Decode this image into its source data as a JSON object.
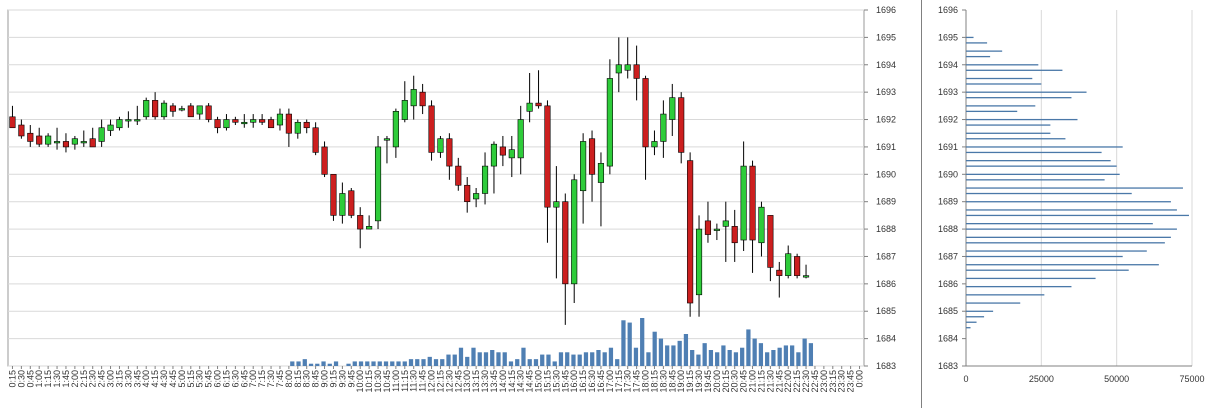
{
  "colors": {
    "up": "#2ecc3a",
    "down": "#cc1f1f",
    "volume": "#4f7fb3",
    "profile": "#4a78a8",
    "grid": "#d9d9d9",
    "wick": "#000000"
  },
  "chart_data": [
    {
      "type": "candlestick",
      "price_axis": {
        "min": 1683,
        "max": 1696,
        "ticks": [
          "1696",
          "1695",
          "1694",
          "1693",
          "1692",
          "1691",
          "1690",
          "1689",
          "1688",
          "1687",
          "1686",
          "1685",
          "1684",
          "1683"
        ]
      },
      "volume_panel": {
        "present": true,
        "bars": [
          0,
          0,
          0,
          0,
          0,
          0,
          0,
          0,
          0,
          0,
          0,
          0,
          0,
          0,
          0,
          0,
          0,
          0,
          0,
          0,
          0,
          0,
          0,
          0,
          0,
          0,
          0,
          0,
          0,
          0,
          0,
          0,
          0,
          0,
          0,
          0,
          0,
          0,
          0,
          0,
          0,
          0,
          0,
          0,
          0,
          0.1,
          0.1,
          0.15,
          0.05,
          0.05,
          0.1,
          0.05,
          0.1,
          0,
          0.05,
          0.1,
          0.1,
          0.1,
          0.1,
          0.1,
          0.1,
          0.1,
          0.1,
          0.1,
          0.15,
          0.15,
          0.15,
          0.2,
          0.15,
          0.15,
          0.25,
          0.25,
          0.4,
          0.2,
          0.4,
          0.3,
          0.3,
          0.35,
          0.3,
          0.3,
          0.1,
          0.15,
          0.4,
          0.15,
          0.15,
          0.25,
          0.25,
          0.1,
          0.3,
          0.3,
          0.25,
          0.25,
          0.3,
          0.3,
          0.35,
          0.3,
          0.4,
          0.15,
          1.0,
          0.95,
          0.4,
          1.05,
          0.3,
          0.75,
          0.6,
          0.45,
          0.45,
          0.55,
          0.7,
          0.35,
          0.25,
          0.5,
          0.35,
          0.3,
          0.45,
          0.35,
          0.3,
          0.4,
          0.8,
          0.6,
          0.5,
          0.3,
          0.35,
          0.4,
          0.45,
          0.45,
          0.3,
          0.6,
          0.5,
          0,
          0,
          0,
          0,
          0,
          0,
          0,
          0
        ]
      },
      "x_labels": [
        "0:15",
        "0:30",
        "0:45",
        "1:00",
        "1:15",
        "1:30",
        "1:45",
        "2:00",
        "2:15",
        "2:30",
        "2:45",
        "3:00",
        "3:15",
        "3:30",
        "3:45",
        "4:00",
        "4:15",
        "4:30",
        "4:45",
        "5:00",
        "5:15",
        "5:30",
        "5:45",
        "6:00",
        "6:15",
        "6:30",
        "6:45",
        "7:00",
        "7:15",
        "7:30",
        "7:45",
        "8:00",
        "8:15",
        "8:30",
        "8:45",
        "9:00",
        "9:15",
        "9:30",
        "9:45",
        "10:00",
        "10:15",
        "10:30",
        "10:45",
        "11:00",
        "11:15",
        "11:30",
        "11:45",
        "12:00",
        "12:15",
        "12:30",
        "12:45",
        "13:00",
        "13:15",
        "13:30",
        "13:45",
        "14:00",
        "14:15",
        "14:30",
        "14:45",
        "15:00",
        "15:15",
        "15:30",
        "15:45",
        "16:00",
        "16:15",
        "16:30",
        "16:45",
        "17:00",
        "17:15",
        "17:30",
        "17:45",
        "18:00",
        "18:15",
        "18:30",
        "18:45",
        "19:00",
        "19:15",
        "19:30",
        "19:45",
        "20:00",
        "20:15",
        "20:30",
        "20:45",
        "21:00",
        "21:15",
        "21:30",
        "21:45",
        "22:00",
        "22:15",
        "22:30",
        "22:45",
        "23:00",
        "23:15",
        "23:30",
        "23:45",
        "0:00"
      ],
      "candles": [
        {
          "o": 1692.1,
          "h": 1692.5,
          "l": 1691.7,
          "c": 1691.7
        },
        {
          "o": 1691.8,
          "h": 1692.0,
          "l": 1691.3,
          "c": 1691.4
        },
        {
          "o": 1691.5,
          "h": 1691.8,
          "l": 1691.0,
          "c": 1691.2
        },
        {
          "o": 1691.4,
          "h": 1691.7,
          "l": 1691.0,
          "c": 1691.1
        },
        {
          "o": 1691.1,
          "h": 1691.5,
          "l": 1691.0,
          "c": 1691.4
        },
        {
          "o": 1691.2,
          "h": 1691.7,
          "l": 1690.9,
          "c": 1691.2
        },
        {
          "o": 1691.2,
          "h": 1691.5,
          "l": 1690.8,
          "c": 1691.0
        },
        {
          "o": 1691.1,
          "h": 1691.4,
          "l": 1690.9,
          "c": 1691.3
        },
        {
          "o": 1691.2,
          "h": 1691.6,
          "l": 1691.0,
          "c": 1691.2
        },
        {
          "o": 1691.3,
          "h": 1691.7,
          "l": 1691.0,
          "c": 1691.0
        },
        {
          "o": 1691.2,
          "h": 1692.0,
          "l": 1691.0,
          "c": 1691.7
        },
        {
          "o": 1691.6,
          "h": 1692.0,
          "l": 1691.4,
          "c": 1691.8
        },
        {
          "o": 1691.7,
          "h": 1692.1,
          "l": 1691.6,
          "c": 1692.0
        },
        {
          "o": 1692.0,
          "h": 1692.3,
          "l": 1691.7,
          "c": 1692.0
        },
        {
          "o": 1692.0,
          "h": 1692.5,
          "l": 1691.8,
          "c": 1692.0
        },
        {
          "o": 1692.1,
          "h": 1692.8,
          "l": 1692.0,
          "c": 1692.7
        },
        {
          "o": 1692.7,
          "h": 1693.0,
          "l": 1692.0,
          "c": 1692.1
        },
        {
          "o": 1692.1,
          "h": 1692.7,
          "l": 1692.0,
          "c": 1692.6
        },
        {
          "o": 1692.5,
          "h": 1692.6,
          "l": 1692.1,
          "c": 1692.3
        },
        {
          "o": 1692.4,
          "h": 1692.5,
          "l": 1692.3,
          "c": 1692.4
        },
        {
          "o": 1692.5,
          "h": 1692.6,
          "l": 1692.1,
          "c": 1692.1
        },
        {
          "o": 1692.2,
          "h": 1692.5,
          "l": 1692.0,
          "c": 1692.5
        },
        {
          "o": 1692.5,
          "h": 1692.6,
          "l": 1691.9,
          "c": 1692.0
        },
        {
          "o": 1692.0,
          "h": 1692.1,
          "l": 1691.5,
          "c": 1691.7
        },
        {
          "o": 1691.7,
          "h": 1692.2,
          "l": 1691.6,
          "c": 1692.0
        },
        {
          "o": 1692.0,
          "h": 1692.1,
          "l": 1691.8,
          "c": 1691.9
        },
        {
          "o": 1691.9,
          "h": 1692.2,
          "l": 1691.7,
          "c": 1691.9
        },
        {
          "o": 1691.9,
          "h": 1692.2,
          "l": 1691.7,
          "c": 1692.0
        },
        {
          "o": 1692.0,
          "h": 1692.2,
          "l": 1691.8,
          "c": 1691.9
        },
        {
          "o": 1692.0,
          "h": 1692.1,
          "l": 1691.7,
          "c": 1691.7
        },
        {
          "o": 1691.8,
          "h": 1692.4,
          "l": 1691.6,
          "c": 1692.2
        },
        {
          "o": 1692.2,
          "h": 1692.4,
          "l": 1691.0,
          "c": 1691.5
        },
        {
          "o": 1691.5,
          "h": 1692.0,
          "l": 1691.3,
          "c": 1691.9
        },
        {
          "o": 1691.9,
          "h": 1692.0,
          "l": 1691.5,
          "c": 1691.7
        },
        {
          "o": 1691.7,
          "h": 1691.9,
          "l": 1690.7,
          "c": 1690.8
        },
        {
          "o": 1691.0,
          "h": 1691.2,
          "l": 1689.9,
          "c": 1690.0
        },
        {
          "o": 1690.0,
          "h": 1690.0,
          "l": 1688.3,
          "c": 1688.5
        },
        {
          "o": 1688.5,
          "h": 1689.7,
          "l": 1688.2,
          "c": 1689.3
        },
        {
          "o": 1689.4,
          "h": 1689.5,
          "l": 1688.4,
          "c": 1688.5
        },
        {
          "o": 1688.5,
          "h": 1688.8,
          "l": 1687.3,
          "c": 1688.0
        },
        {
          "o": 1688.0,
          "h": 1688.5,
          "l": 1688.0,
          "c": 1688.1
        },
        {
          "o": 1688.3,
          "h": 1691.4,
          "l": 1688.0,
          "c": 1691.0
        },
        {
          "o": 1691.3,
          "h": 1691.4,
          "l": 1690.4,
          "c": 1691.3
        },
        {
          "o": 1691.0,
          "h": 1692.4,
          "l": 1690.6,
          "c": 1692.3
        },
        {
          "o": 1692.0,
          "h": 1693.4,
          "l": 1691.9,
          "c": 1692.7
        },
        {
          "o": 1692.5,
          "h": 1693.6,
          "l": 1692.0,
          "c": 1693.1
        },
        {
          "o": 1693.0,
          "h": 1693.3,
          "l": 1692.2,
          "c": 1692.5
        },
        {
          "o": 1692.5,
          "h": 1692.7,
          "l": 1690.5,
          "c": 1690.8
        },
        {
          "o": 1690.8,
          "h": 1691.4,
          "l": 1690.6,
          "c": 1691.3
        },
        {
          "o": 1691.3,
          "h": 1691.5,
          "l": 1689.8,
          "c": 1690.3
        },
        {
          "o": 1690.3,
          "h": 1690.6,
          "l": 1689.4,
          "c": 1689.6
        },
        {
          "o": 1689.6,
          "h": 1689.9,
          "l": 1688.6,
          "c": 1689.0
        },
        {
          "o": 1689.1,
          "h": 1689.5,
          "l": 1688.8,
          "c": 1689.3
        },
        {
          "o": 1689.3,
          "h": 1690.8,
          "l": 1688.9,
          "c": 1690.3
        },
        {
          "o": 1690.3,
          "h": 1691.2,
          "l": 1689.3,
          "c": 1691.1
        },
        {
          "o": 1691.0,
          "h": 1691.4,
          "l": 1690.3,
          "c": 1690.7
        },
        {
          "o": 1690.6,
          "h": 1691.4,
          "l": 1689.9,
          "c": 1690.9
        },
        {
          "o": 1690.6,
          "h": 1692.5,
          "l": 1690.0,
          "c": 1692.0
        },
        {
          "o": 1692.3,
          "h": 1693.7,
          "l": 1691.9,
          "c": 1692.6
        },
        {
          "o": 1692.6,
          "h": 1693.8,
          "l": 1692.4,
          "c": 1692.5
        },
        {
          "o": 1692.5,
          "h": 1692.7,
          "l": 1687.5,
          "c": 1688.8
        },
        {
          "o": 1688.8,
          "h": 1690.3,
          "l": 1686.2,
          "c": 1689.0
        },
        {
          "o": 1689.0,
          "h": 1689.3,
          "l": 1684.5,
          "c": 1686.0
        },
        {
          "o": 1686.0,
          "h": 1690.0,
          "l": 1685.3,
          "c": 1689.8
        },
        {
          "o": 1689.4,
          "h": 1691.5,
          "l": 1688.2,
          "c": 1691.2
        },
        {
          "o": 1691.3,
          "h": 1691.6,
          "l": 1689.0,
          "c": 1690.0
        },
        {
          "o": 1689.7,
          "h": 1690.8,
          "l": 1688.1,
          "c": 1690.4
        },
        {
          "o": 1690.3,
          "h": 1694.2,
          "l": 1690.0,
          "c": 1693.5
        },
        {
          "o": 1693.7,
          "h": 1695.0,
          "l": 1693.0,
          "c": 1694.0
        },
        {
          "o": 1693.8,
          "h": 1695.0,
          "l": 1693.5,
          "c": 1694.0
        },
        {
          "o": 1694.0,
          "h": 1694.7,
          "l": 1692.7,
          "c": 1693.5
        },
        {
          "o": 1693.5,
          "h": 1693.6,
          "l": 1689.8,
          "c": 1691.0
        },
        {
          "o": 1691.0,
          "h": 1691.6,
          "l": 1690.7,
          "c": 1691.2
        },
        {
          "o": 1691.2,
          "h": 1692.7,
          "l": 1690.6,
          "c": 1692.2
        },
        {
          "o": 1692.0,
          "h": 1693.3,
          "l": 1691.4,
          "c": 1692.8
        },
        {
          "o": 1692.8,
          "h": 1693.0,
          "l": 1690.4,
          "c": 1690.8
        },
        {
          "o": 1690.5,
          "h": 1690.8,
          "l": 1684.8,
          "c": 1685.3
        },
        {
          "o": 1685.6,
          "h": 1688.5,
          "l": 1684.8,
          "c": 1688.0
        },
        {
          "o": 1688.3,
          "h": 1689.0,
          "l": 1687.5,
          "c": 1687.8
        },
        {
          "o": 1688.0,
          "h": 1688.2,
          "l": 1687.6,
          "c": 1688.0
        },
        {
          "o": 1688.1,
          "h": 1689.0,
          "l": 1686.8,
          "c": 1688.3
        },
        {
          "o": 1688.1,
          "h": 1688.7,
          "l": 1686.8,
          "c": 1687.5
        },
        {
          "o": 1687.6,
          "h": 1691.2,
          "l": 1687.2,
          "c": 1690.3
        },
        {
          "o": 1690.3,
          "h": 1690.5,
          "l": 1686.4,
          "c": 1687.6
        },
        {
          "o": 1687.5,
          "h": 1689.0,
          "l": 1687.0,
          "c": 1688.8
        },
        {
          "o": 1688.5,
          "h": 1688.5,
          "l": 1686.1,
          "c": 1686.6
        },
        {
          "o": 1686.5,
          "h": 1686.8,
          "l": 1685.5,
          "c": 1686.3
        },
        {
          "o": 1686.3,
          "h": 1687.4,
          "l": 1686.2,
          "c": 1687.1
        },
        {
          "o": 1687.0,
          "h": 1687.1,
          "l": 1686.2,
          "c": 1686.3
        },
        {
          "o": 1686.3,
          "h": 1686.7,
          "l": 1686.2,
          "c": 1686.3
        }
      ]
    },
    {
      "type": "bar",
      "orientation": "horizontal",
      "price_axis": {
        "min": 1683,
        "max": 1696,
        "ticks": [
          "1696",
          "1695",
          "1694",
          "1693",
          "1692",
          "1691",
          "1690",
          "1689",
          "1688",
          "1687",
          "1686",
          "1685",
          "1684",
          "1683"
        ]
      },
      "x_axis": {
        "min": 0,
        "max": 75000,
        "ticks": [
          "0",
          "25000",
          "50000",
          "75000"
        ]
      },
      "profile": [
        {
          "price": 1684.4,
          "value": 1500
        },
        {
          "price": 1684.6,
          "value": 3500
        },
        {
          "price": 1684.8,
          "value": 6000
        },
        {
          "price": 1685.0,
          "value": 9000
        },
        {
          "price": 1685.3,
          "value": 18000
        },
        {
          "price": 1685.6,
          "value": 26000
        },
        {
          "price": 1685.9,
          "value": 35000
        },
        {
          "price": 1686.2,
          "value": 43000
        },
        {
          "price": 1686.5,
          "value": 54000
        },
        {
          "price": 1686.7,
          "value": 64000
        },
        {
          "price": 1687.0,
          "value": 52000
        },
        {
          "price": 1687.2,
          "value": 60000
        },
        {
          "price": 1687.5,
          "value": 66000
        },
        {
          "price": 1687.7,
          "value": 68000
        },
        {
          "price": 1688.0,
          "value": 70000
        },
        {
          "price": 1688.2,
          "value": 62000
        },
        {
          "price": 1688.5,
          "value": 74000
        },
        {
          "price": 1688.7,
          "value": 70000
        },
        {
          "price": 1689.0,
          "value": 68000
        },
        {
          "price": 1689.3,
          "value": 55000
        },
        {
          "price": 1689.5,
          "value": 72000
        },
        {
          "price": 1689.8,
          "value": 46000
        },
        {
          "price": 1690.0,
          "value": 51000
        },
        {
          "price": 1690.3,
          "value": 50000
        },
        {
          "price": 1690.5,
          "value": 48000
        },
        {
          "price": 1690.8,
          "value": 45000
        },
        {
          "price": 1691.0,
          "value": 52000
        },
        {
          "price": 1691.3,
          "value": 33000
        },
        {
          "price": 1691.5,
          "value": 28000
        },
        {
          "price": 1691.8,
          "value": 28000
        },
        {
          "price": 1692.0,
          "value": 37000
        },
        {
          "price": 1692.3,
          "value": 17000
        },
        {
          "price": 1692.5,
          "value": 23000
        },
        {
          "price": 1692.8,
          "value": 35000
        },
        {
          "price": 1693.0,
          "value": 40000
        },
        {
          "price": 1693.3,
          "value": 25000
        },
        {
          "price": 1693.5,
          "value": 22000
        },
        {
          "price": 1693.8,
          "value": 32000
        },
        {
          "price": 1694.0,
          "value": 24000
        },
        {
          "price": 1694.3,
          "value": 8000
        },
        {
          "price": 1694.5,
          "value": 12000
        },
        {
          "price": 1694.8,
          "value": 7000
        },
        {
          "price": 1695.0,
          "value": 2500
        }
      ]
    }
  ]
}
